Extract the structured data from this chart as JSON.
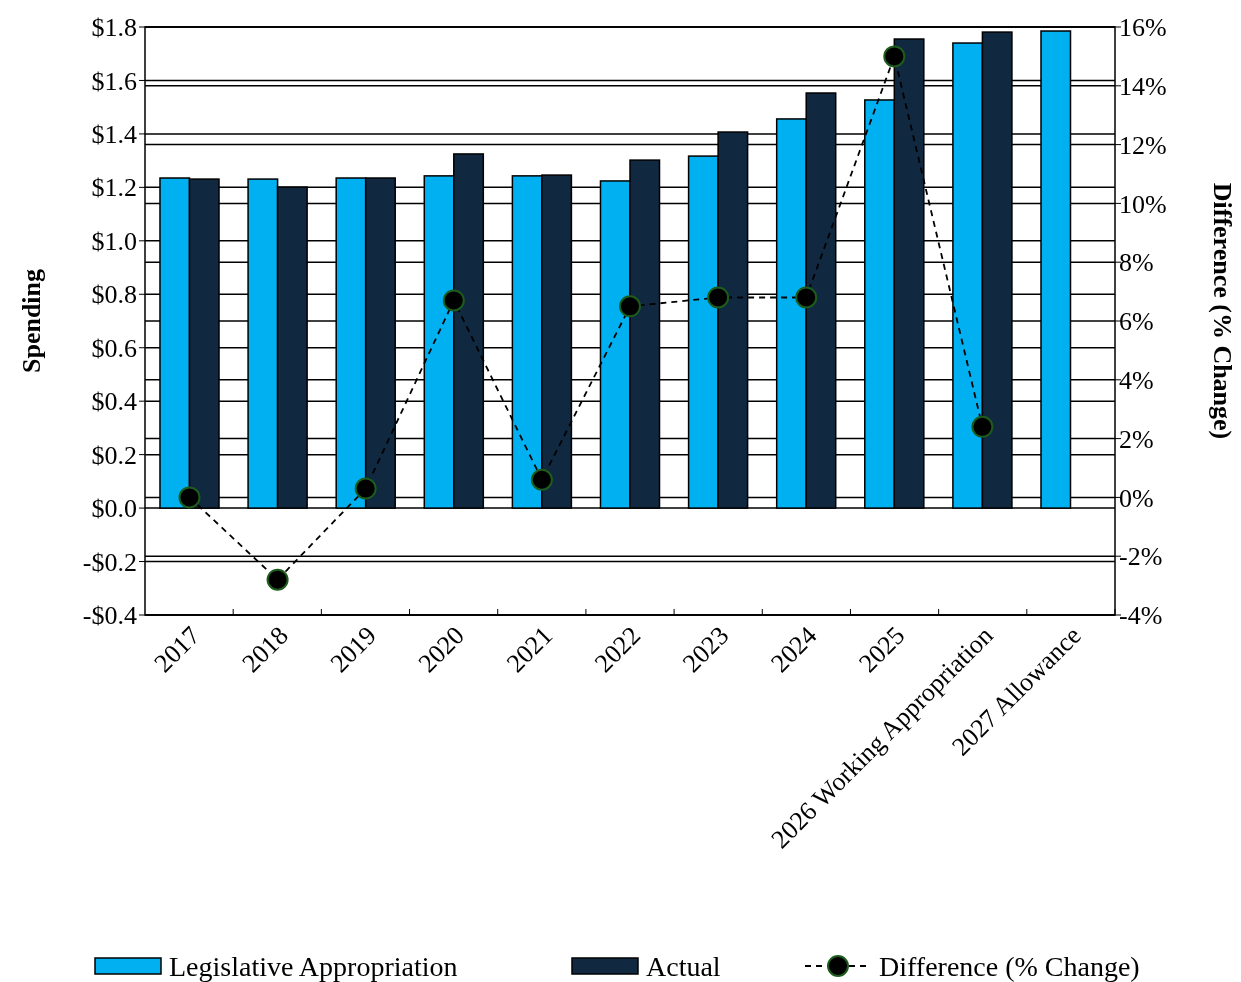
{
  "chart_data": {
    "type": "bar",
    "ylabel": "Spending",
    "y2label": "Difference (% Change)",
    "categories": [
      "2017",
      "2018",
      "2019",
      "2020",
      "2021",
      "2022",
      "2023",
      "2024",
      "2025",
      "2026 Working Appropriation",
      "2027 Allowance"
    ],
    "series": [
      {
        "name": "Legislative Appropriation",
        "color": "#00b0f0",
        "values": [
          1.235,
          1.231,
          1.235,
          1.243,
          1.243,
          1.224,
          1.317,
          1.456,
          1.527,
          1.74,
          1.785
        ]
      },
      {
        "name": "Actual",
        "color": "#102840",
        "values": [
          1.231,
          1.201,
          1.235,
          1.325,
          1.246,
          1.302,
          1.407,
          1.553,
          1.755,
          1.781,
          null
        ]
      },
      {
        "name": "Difference (% Change)",
        "type": "line",
        "axis": "y2",
        "color": "#000000",
        "marker": "circle",
        "line_style": "dashed",
        "values": [
          0,
          -2.8,
          0.3,
          6.7,
          0.6,
          6.5,
          6.8,
          6.8,
          15.0,
          2.4,
          null
        ]
      }
    ],
    "ylim": [
      -0.4,
      1.8
    ],
    "yticks": [
      {
        "value": -0.4,
        "label": "-$0.4"
      },
      {
        "value": -0.2,
        "label": "-$0.2"
      },
      {
        "value": 0,
        "label": "$0.0"
      },
      {
        "value": 0.2,
        "label": "$0.2"
      },
      {
        "value": 0.4,
        "label": "$0.4"
      },
      {
        "value": 0.6,
        "label": "$0.6"
      },
      {
        "value": 0.8,
        "label": "$0.8"
      },
      {
        "value": 1.0,
        "label": "$1.0"
      },
      {
        "value": 1.2,
        "label": "$1.2"
      },
      {
        "value": 1.4,
        "label": "$1.4"
      },
      {
        "value": 1.6,
        "label": "$1.6"
      },
      {
        "value": 1.8,
        "label": "$1.8"
      }
    ],
    "y2lim": [
      -4,
      16
    ],
    "y2ticks": [
      {
        "value": -4,
        "label": "-4%"
      },
      {
        "value": -2,
        "label": "-2%"
      },
      {
        "value": 0,
        "label": "0%"
      },
      {
        "value": 2,
        "label": "2%"
      },
      {
        "value": 4,
        "label": "4%"
      },
      {
        "value": 6,
        "label": "6%"
      },
      {
        "value": 8,
        "label": "8%"
      },
      {
        "value": 10,
        "label": "10%"
      },
      {
        "value": 12,
        "label": "12%"
      },
      {
        "value": 14,
        "label": "14%"
      },
      {
        "value": 16,
        "label": "16%"
      }
    ],
    "grid": true,
    "legend": "bottom"
  }
}
